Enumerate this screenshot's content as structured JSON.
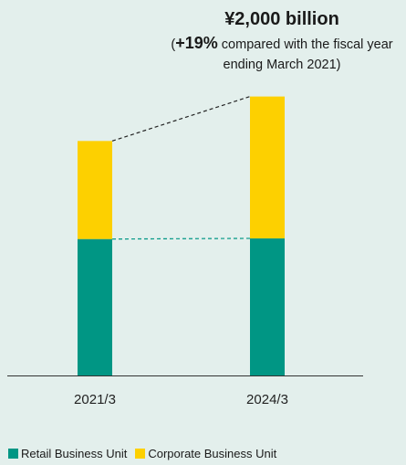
{
  "annotation": {
    "headline": "¥2,000 billion",
    "sub_open": "(",
    "sub_bold": "+19%",
    "sub_rest": " compared with the fiscal year ending March 2021)"
  },
  "colors": {
    "retail": "#009684",
    "corporate": "#fdd000",
    "background": "#e3efec",
    "axis": "#333333"
  },
  "chart_data": {
    "type": "bar",
    "stacked": true,
    "categories": [
      "2021/3",
      "2024/3"
    ],
    "series": [
      {
        "name": "Retail Business Unit",
        "color": "#009684",
        "values": [
          978,
          983
        ]
      },
      {
        "name": "Corporate Business Unit",
        "color": "#fdd000",
        "values": [
          703,
          1017
        ]
      }
    ],
    "totals": [
      1681,
      2000
    ],
    "ylim": [
      0,
      2050
    ],
    "xlabel": "",
    "ylabel": "",
    "grid": false,
    "legend_position": "bottom-left",
    "connectors": [
      "totals",
      "retail-top"
    ]
  },
  "legend": {
    "items": [
      {
        "label": "Retail Business Unit",
        "color": "#009684"
      },
      {
        "label": "Corporate Business Unit",
        "color": "#fdd000"
      }
    ]
  }
}
